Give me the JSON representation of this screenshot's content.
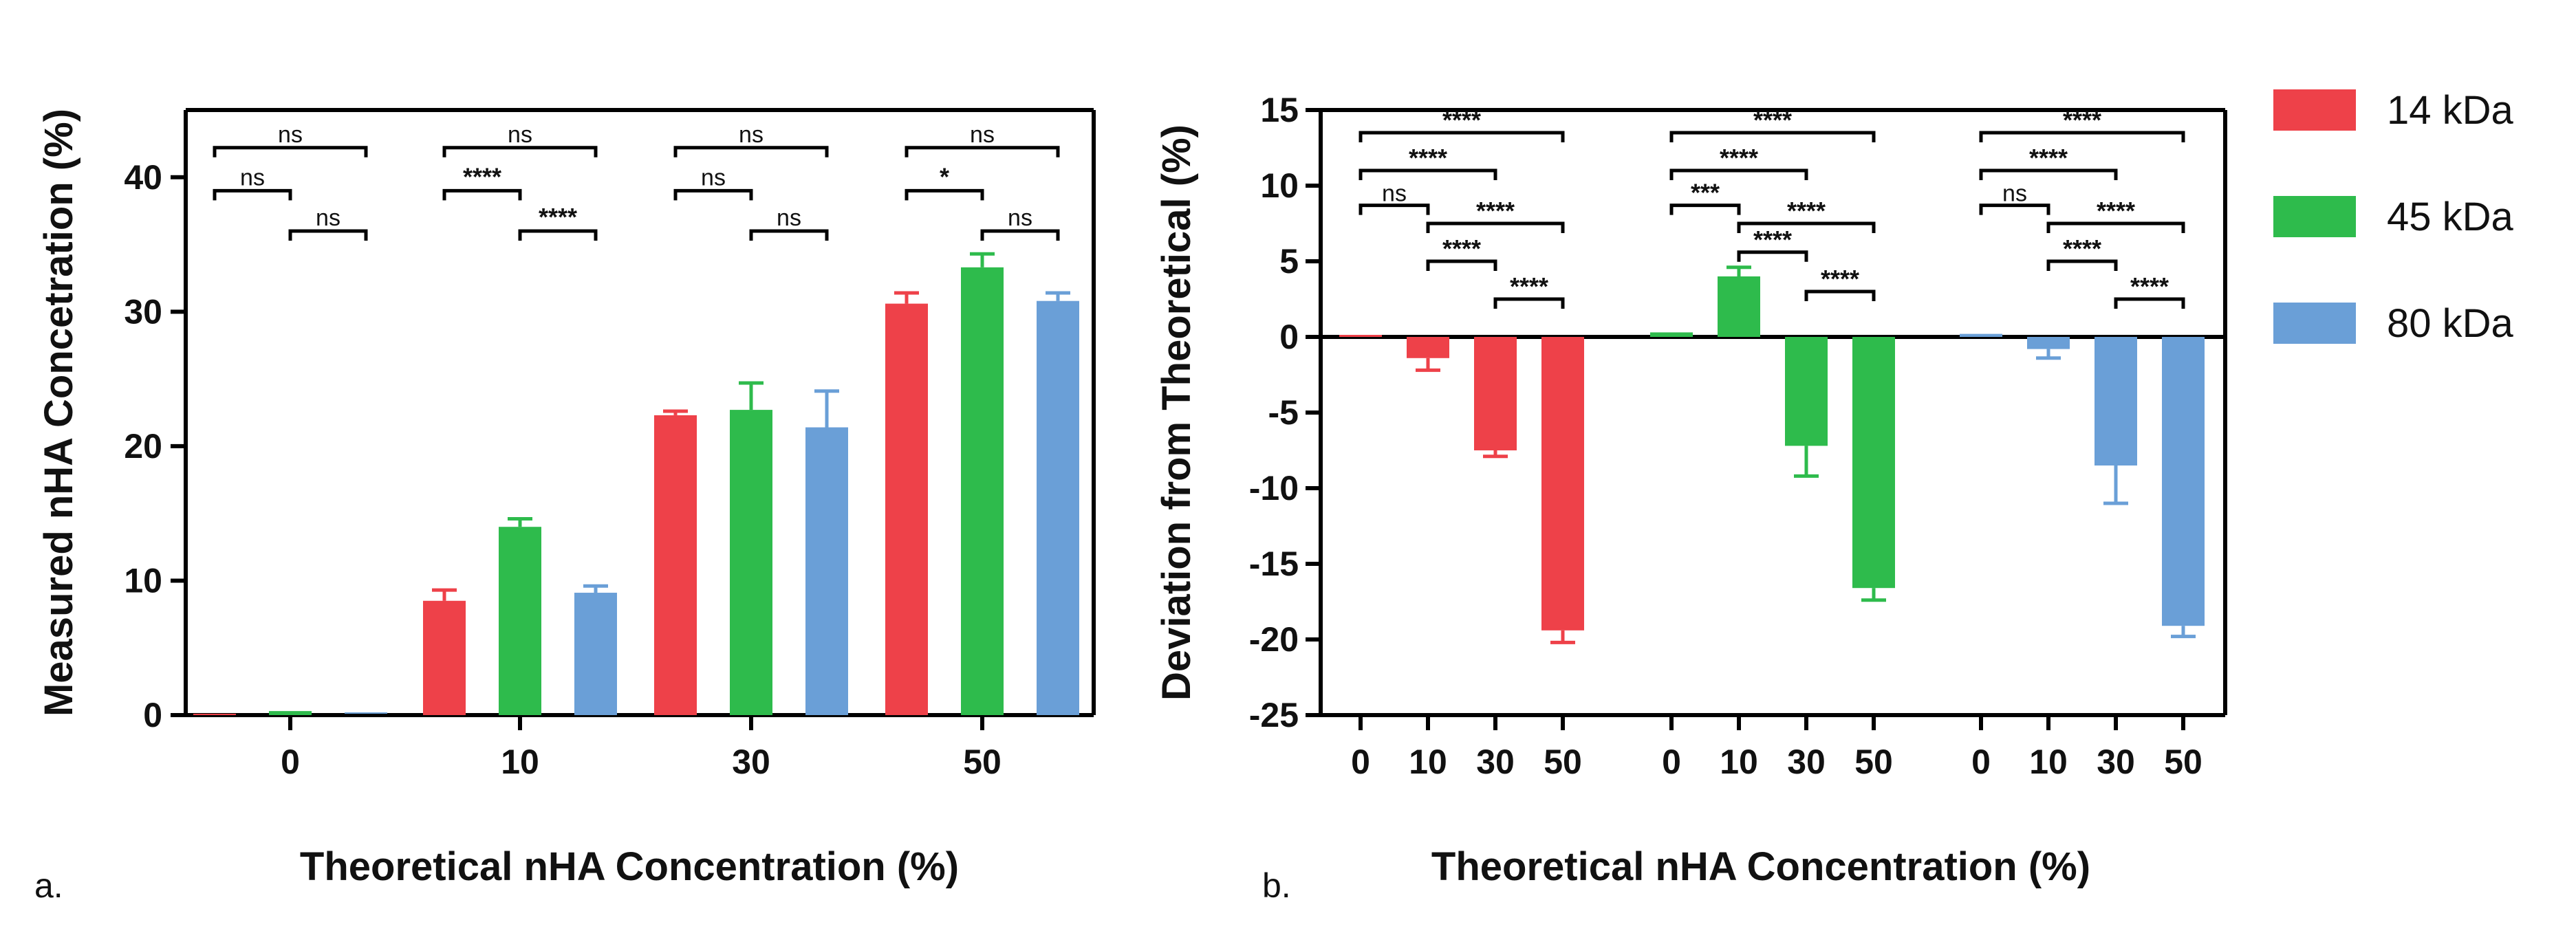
{
  "colors": {
    "14 kDa": "#ee4149",
    "45 kDa": "#2ebb4c",
    "80 kDa": "#6a9fd7"
  },
  "legend": [
    "14 kDa",
    "45 kDa",
    "80 kDa"
  ],
  "panel_labels": {
    "a": "a.",
    "b": "b."
  },
  "chart_data": [
    {
      "type": "bar",
      "panel": "a",
      "ylabel": "Measured nHA Concetration (%)",
      "xlabel": "Theoretical nHA Concentration (%)",
      "categories": [
        "0",
        "10",
        "30",
        "50"
      ],
      "ylim": [
        0,
        45
      ],
      "yticks": [
        0,
        10,
        20,
        30,
        40
      ],
      "series": [
        {
          "name": "14 kDa",
          "values": [
            0.0,
            8.5,
            22.3,
            30.6
          ],
          "errors": [
            0.0,
            0.8,
            0.3,
            0.8
          ]
        },
        {
          "name": "45 kDa",
          "values": [
            0.3,
            14.0,
            22.7,
            33.3
          ],
          "errors": [
            0.0,
            0.6,
            2.0,
            1.0
          ]
        },
        {
          "name": "80 kDa",
          "values": [
            0.1,
            9.1,
            21.4,
            30.8
          ],
          "errors": [
            0.0,
            0.5,
            2.7,
            0.6
          ]
        }
      ],
      "significance": [
        {
          "group": 0,
          "from": 0,
          "to": 2,
          "level": 42.2,
          "label": "ns"
        },
        {
          "group": 0,
          "from": 0,
          "to": 1,
          "level": 39.0,
          "label": "ns"
        },
        {
          "group": 0,
          "from": 1,
          "to": 2,
          "level": 36.0,
          "label": "ns"
        },
        {
          "group": 1,
          "from": 0,
          "to": 2,
          "level": 42.2,
          "label": "ns"
        },
        {
          "group": 1,
          "from": 0,
          "to": 1,
          "level": 39.0,
          "label": "****"
        },
        {
          "group": 1,
          "from": 1,
          "to": 2,
          "level": 36.0,
          "label": "****"
        },
        {
          "group": 2,
          "from": 0,
          "to": 2,
          "level": 42.2,
          "label": "ns"
        },
        {
          "group": 2,
          "from": 0,
          "to": 1,
          "level": 39.0,
          "label": "ns"
        },
        {
          "group": 2,
          "from": 1,
          "to": 2,
          "level": 36.0,
          "label": "ns"
        },
        {
          "group": 3,
          "from": 0,
          "to": 2,
          "level": 42.2,
          "label": "ns"
        },
        {
          "group": 3,
          "from": 0,
          "to": 1,
          "level": 39.0,
          "label": "*"
        },
        {
          "group": 3,
          "from": 1,
          "to": 2,
          "level": 36.0,
          "label": "ns"
        }
      ]
    },
    {
      "type": "bar",
      "panel": "b",
      "ylabel": "Deviation from Theoretical (%)",
      "xlabel": "Theoretical nHA Concentration (%)",
      "categories": [
        "0",
        "10",
        "30",
        "50"
      ],
      "ylim": [
        -25,
        15
      ],
      "yticks": [
        -25,
        -20,
        -15,
        -10,
        -5,
        0,
        5,
        10,
        15
      ],
      "series": [
        {
          "name": "14 kDa",
          "values": [
            0.0,
            -1.4,
            -7.5,
            -19.4
          ],
          "errors": [
            0.0,
            0.8,
            0.4,
            0.8
          ]
        },
        {
          "name": "45 kDa",
          "values": [
            0.3,
            4.0,
            -7.2,
            -16.6
          ],
          "errors": [
            0.0,
            0.6,
            2.0,
            0.8
          ]
        },
        {
          "name": "80 kDa",
          "values": [
            0.2,
            -0.8,
            -8.5,
            -19.1
          ],
          "errors": [
            0.0,
            0.6,
            2.5,
            0.7
          ]
        }
      ],
      "significance": [
        {
          "group": 0,
          "from": 0,
          "to": 3,
          "level": 13.5,
          "label": "****"
        },
        {
          "group": 0,
          "from": 0,
          "to": 2,
          "level": 11.0,
          "label": "****"
        },
        {
          "group": 0,
          "from": 0,
          "to": 1,
          "level": 8.7,
          "label": "ns"
        },
        {
          "group": 0,
          "from": 1,
          "to": 3,
          "level": 7.5,
          "label": "****"
        },
        {
          "group": 0,
          "from": 1,
          "to": 2,
          "level": 5.0,
          "label": "****"
        },
        {
          "group": 0,
          "from": 2,
          "to": 3,
          "level": 2.5,
          "label": "****"
        },
        {
          "group": 1,
          "from": 0,
          "to": 3,
          "level": 13.5,
          "label": "****"
        },
        {
          "group": 1,
          "from": 0,
          "to": 2,
          "level": 11.0,
          "label": "****"
        },
        {
          "group": 1,
          "from": 0,
          "to": 1,
          "level": 8.7,
          "label": "***"
        },
        {
          "group": 1,
          "from": 1,
          "to": 3,
          "level": 7.5,
          "label": "****"
        },
        {
          "group": 1,
          "from": 1,
          "to": 2,
          "level": 5.6,
          "label": "****"
        },
        {
          "group": 1,
          "from": 2,
          "to": 3,
          "level": 3.0,
          "label": "****"
        },
        {
          "group": 2,
          "from": 0,
          "to": 3,
          "level": 13.5,
          "label": "****"
        },
        {
          "group": 2,
          "from": 0,
          "to": 2,
          "level": 11.0,
          "label": "****"
        },
        {
          "group": 2,
          "from": 0,
          "to": 1,
          "level": 8.7,
          "label": "ns"
        },
        {
          "group": 2,
          "from": 1,
          "to": 3,
          "level": 7.5,
          "label": "****"
        },
        {
          "group": 2,
          "from": 1,
          "to": 2,
          "level": 5.0,
          "label": "****"
        },
        {
          "group": 2,
          "from": 2,
          "to": 3,
          "level": 2.5,
          "label": "****"
        }
      ]
    }
  ]
}
